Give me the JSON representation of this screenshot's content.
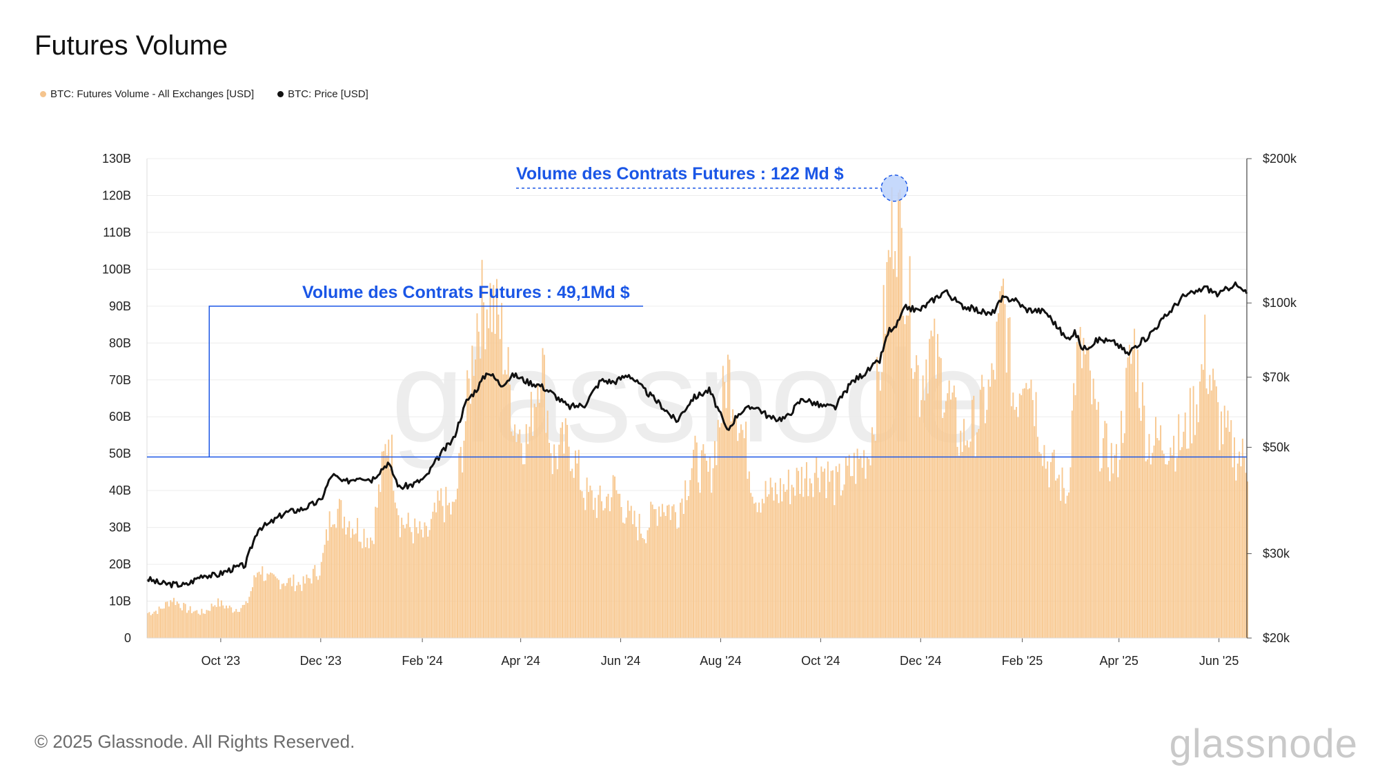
{
  "title": "Futures Volume",
  "legend": [
    {
      "label": "BTC: Futures Volume - All Exchanges [USD]",
      "color": "#f5c48d"
    },
    {
      "label": "BTC: Price [USD]",
      "color": "#111111"
    }
  ],
  "footer": "© 2025 Glassnode. All Rights Reserved.",
  "brand": "glassnode",
  "watermark": "glassnode",
  "colors": {
    "volume": "#f8c992",
    "price": "#111111",
    "annotation": "#1a56e6",
    "grid": "#ececec"
  },
  "chart_data": {
    "type": "bar",
    "title": "Futures Volume",
    "x_range": [
      "2023-08-17",
      "2025-06-18"
    ],
    "x_ticks": [
      "Oct '23",
      "Dec '23",
      "Feb '24",
      "Apr '24",
      "Jun '24",
      "Aug '24",
      "Oct '24",
      "Dec '24",
      "Feb '25",
      "Apr '25",
      "Jun '25"
    ],
    "y_left": {
      "min": 0,
      "max": 130,
      "unit": "B",
      "ticks": [
        "0",
        "10B",
        "20B",
        "30B",
        "40B",
        "50B",
        "60B",
        "70B",
        "80B",
        "90B",
        "100B",
        "110B",
        "120B",
        "130B"
      ]
    },
    "y_right": {
      "scale": "log",
      "min": 20000,
      "max": 200000,
      "ticks": [
        "$20k",
        "$30k",
        "$50k",
        "$70k",
        "$100k",
        "$200k"
      ],
      "tick_values": [
        20000,
        30000,
        50000,
        70000,
        100000,
        200000
      ]
    },
    "series": [
      {
        "name": "BTC: Futures Volume - All Exchanges [USD]",
        "axis": "left",
        "points": [
          [
            "2023-08-17",
            7
          ],
          [
            "2023-08-25",
            8
          ],
          [
            "2023-09-01",
            11
          ],
          [
            "2023-09-10",
            8
          ],
          [
            "2023-09-20",
            7
          ],
          [
            "2023-09-28",
            10
          ],
          [
            "2023-10-08",
            8
          ],
          [
            "2023-10-16",
            9
          ],
          [
            "2023-10-24",
            20
          ],
          [
            "2023-10-30",
            16
          ],
          [
            "2023-11-09",
            16
          ],
          [
            "2023-11-20",
            15
          ],
          [
            "2023-12-01",
            20
          ],
          [
            "2023-12-08",
            37
          ],
          [
            "2023-12-15",
            34
          ],
          [
            "2023-12-25",
            30
          ],
          [
            "2024-01-01",
            28
          ],
          [
            "2024-01-11",
            58
          ],
          [
            "2024-01-18",
            33
          ],
          [
            "2024-01-26",
            30
          ],
          [
            "2024-02-03",
            28
          ],
          [
            "2024-02-12",
            38
          ],
          [
            "2024-02-20",
            35
          ],
          [
            "2024-02-28",
            65
          ],
          [
            "2024-03-05",
            90
          ],
          [
            "2024-03-12",
            96
          ],
          [
            "2024-03-20",
            85
          ],
          [
            "2024-03-28",
            60
          ],
          [
            "2024-04-05",
            55
          ],
          [
            "2024-04-13",
            80
          ],
          [
            "2024-04-20",
            50
          ],
          [
            "2024-04-30",
            55
          ],
          [
            "2024-05-10",
            40
          ],
          [
            "2024-05-20",
            37
          ],
          [
            "2024-05-28",
            42
          ],
          [
            "2024-06-06",
            33
          ],
          [
            "2024-06-15",
            30
          ],
          [
            "2024-06-25",
            38
          ],
          [
            "2024-07-05",
            35
          ],
          [
            "2024-07-15",
            50
          ],
          [
            "2024-07-25",
            45
          ],
          [
            "2024-08-05",
            75
          ],
          [
            "2024-08-12",
            62
          ],
          [
            "2024-08-22",
            40
          ],
          [
            "2024-09-01",
            40
          ],
          [
            "2024-09-10",
            42
          ],
          [
            "2024-09-20",
            45
          ],
          [
            "2024-10-01",
            48
          ],
          [
            "2024-10-10",
            42
          ],
          [
            "2024-10-20",
            47
          ],
          [
            "2024-10-30",
            52
          ],
          [
            "2024-11-06",
            75
          ],
          [
            "2024-11-12",
            110
          ],
          [
            "2024-11-15",
            122
          ],
          [
            "2024-11-22",
            100
          ],
          [
            "2024-11-30",
            70
          ],
          [
            "2024-12-06",
            82
          ],
          [
            "2024-12-16",
            70
          ],
          [
            "2024-12-25",
            55
          ],
          [
            "2025-01-03",
            60
          ],
          [
            "2025-01-13",
            70
          ],
          [
            "2025-01-20",
            95
          ],
          [
            "2025-01-27",
            65
          ],
          [
            "2025-02-03",
            80
          ],
          [
            "2025-02-15",
            50
          ],
          [
            "2025-02-28",
            40
          ],
          [
            "2025-03-05",
            75
          ],
          [
            "2025-03-10",
            80
          ],
          [
            "2025-03-20",
            55
          ],
          [
            "2025-03-30",
            48
          ],
          [
            "2025-04-07",
            75
          ],
          [
            "2025-04-10",
            82
          ],
          [
            "2025-04-18",
            55
          ],
          [
            "2025-04-30",
            55
          ],
          [
            "2025-05-10",
            55
          ],
          [
            "2025-05-20",
            70
          ],
          [
            "2025-05-23",
            80
          ],
          [
            "2025-06-01",
            60
          ],
          [
            "2025-06-10",
            52
          ],
          [
            "2025-06-18",
            49
          ]
        ]
      },
      {
        "name": "BTC: Price [USD]",
        "axis": "right",
        "points": [
          [
            "2023-08-17",
            26600
          ],
          [
            "2023-08-25",
            26000
          ],
          [
            "2023-09-01",
            25900
          ],
          [
            "2023-09-10",
            25800
          ],
          [
            "2023-09-20",
            27100
          ],
          [
            "2023-09-28",
            27000
          ],
          [
            "2023-10-08",
            27900
          ],
          [
            "2023-10-16",
            28400
          ],
          [
            "2023-10-24",
            33900
          ],
          [
            "2023-10-30",
            34500
          ],
          [
            "2023-11-09",
            36500
          ],
          [
            "2023-11-20",
            37200
          ],
          [
            "2023-12-01",
            38700
          ],
          [
            "2023-12-08",
            43900
          ],
          [
            "2023-12-15",
            42200
          ],
          [
            "2023-12-25",
            43500
          ],
          [
            "2024-01-01",
            42800
          ],
          [
            "2024-01-11",
            46400
          ],
          [
            "2024-01-18",
            41200
          ],
          [
            "2024-01-26",
            41800
          ],
          [
            "2024-02-03",
            43200
          ],
          [
            "2024-02-12",
            48300
          ],
          [
            "2024-02-20",
            52000
          ],
          [
            "2024-02-28",
            62400
          ],
          [
            "2024-03-05",
            66000
          ],
          [
            "2024-03-12",
            72000
          ],
          [
            "2024-03-20",
            67500
          ],
          [
            "2024-03-28",
            70800
          ],
          [
            "2024-04-05",
            68500
          ],
          [
            "2024-04-13",
            67300
          ],
          [
            "2024-04-20",
            64900
          ],
          [
            "2024-04-30",
            60700
          ],
          [
            "2024-05-10",
            61300
          ],
          [
            "2024-05-20",
            69000
          ],
          [
            "2024-05-28",
            68400
          ],
          [
            "2024-06-06",
            71000
          ],
          [
            "2024-06-15",
            66000
          ],
          [
            "2024-06-25",
            61500
          ],
          [
            "2024-07-05",
            56600
          ],
          [
            "2024-07-15",
            63300
          ],
          [
            "2024-07-25",
            65800
          ],
          [
            "2024-08-05",
            54000
          ],
          [
            "2024-08-12",
            59000
          ],
          [
            "2024-08-22",
            61000
          ],
          [
            "2024-09-01",
            57300
          ],
          [
            "2024-09-10",
            57600
          ],
          [
            "2024-09-20",
            63200
          ],
          [
            "2024-10-01",
            61000
          ],
          [
            "2024-10-10",
            60600
          ],
          [
            "2024-10-20",
            68400
          ],
          [
            "2024-10-30",
            72300
          ],
          [
            "2024-11-06",
            75800
          ],
          [
            "2024-11-12",
            88000
          ],
          [
            "2024-11-15",
            88000
          ],
          [
            "2024-11-22",
            98000
          ],
          [
            "2024-11-30",
            96400
          ],
          [
            "2024-12-06",
            99900
          ],
          [
            "2024-12-16",
            106000
          ],
          [
            "2024-12-25",
            99000
          ],
          [
            "2025-01-03",
            97000
          ],
          [
            "2025-01-13",
            94500
          ],
          [
            "2025-01-20",
            102000
          ],
          [
            "2025-01-27",
            102000
          ],
          [
            "2025-02-03",
            97000
          ],
          [
            "2025-02-15",
            96000
          ],
          [
            "2025-02-28",
            84000
          ],
          [
            "2025-03-05",
            87000
          ],
          [
            "2025-03-10",
            80000
          ],
          [
            "2025-03-20",
            84000
          ],
          [
            "2025-03-30",
            82500
          ],
          [
            "2025-04-07",
            78000
          ],
          [
            "2025-04-10",
            81000
          ],
          [
            "2025-04-18",
            84700
          ],
          [
            "2025-04-30",
            94200
          ],
          [
            "2025-05-10",
            103000
          ],
          [
            "2025-05-20",
            106000
          ],
          [
            "2025-05-23",
            108000
          ],
          [
            "2025-06-01",
            104000
          ],
          [
            "2025-06-10",
            109600
          ],
          [
            "2025-06-18",
            104600
          ]
        ]
      }
    ],
    "annotations": [
      {
        "text": "Volume des Contrats Futures : 49,1Md $",
        "value": 49.1,
        "date": "2023-09-24"
      },
      {
        "text": "Volume des Contrats Futures : 122 Md $",
        "value": 122,
        "date": "2024-11-15"
      }
    ]
  }
}
